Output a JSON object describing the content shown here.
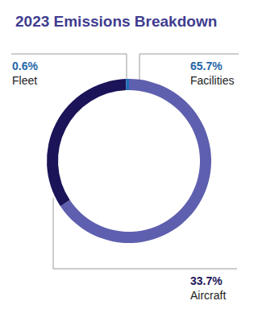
{
  "chart_data": {
    "type": "pie",
    "title": "2023 Emissions Breakdown",
    "categories": [
      "Facilities",
      "Aircraft",
      "Fleet"
    ],
    "values": [
      65.7,
      33.7,
      0.6
    ],
    "value_labels": [
      "65.7%",
      "33.7%",
      "0.6%"
    ],
    "colors": [
      "#5e5fae",
      "#1b1458",
      "#1f6fb8"
    ],
    "data_labels": true
  }
}
